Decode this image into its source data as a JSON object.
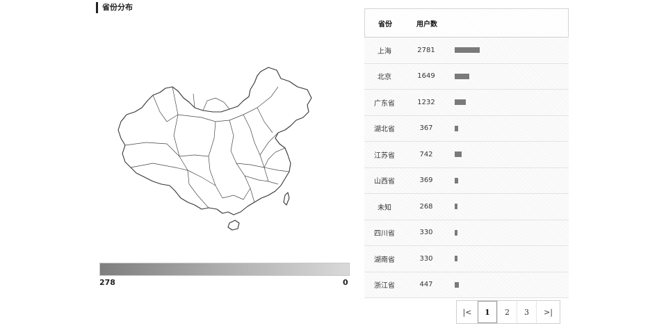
{
  "section": {
    "title": "省份分布"
  },
  "legend": {
    "min_label": "278",
    "max_label": "0"
  },
  "table": {
    "headers": {
      "province": "省份",
      "count": "用户数"
    },
    "rows": [
      {
        "province": "上海",
        "count": "2781",
        "value": 2781
      },
      {
        "province": "北京",
        "count": "1649",
        "value": 1649
      },
      {
        "province": "广东省",
        "count": "1232",
        "value": 1232
      },
      {
        "province": "湖北省",
        "count": "367",
        "value": 367
      },
      {
        "province": "江苏省",
        "count": "742",
        "value": 742
      },
      {
        "province": "山西省",
        "count": "369",
        "value": 369
      },
      {
        "province": "未知",
        "count": "268",
        "value": 268
      },
      {
        "province": "四川省",
        "count": "330",
        "value": 330
      },
      {
        "province": "湖南省",
        "count": "330",
        "value": 330
      },
      {
        "province": "浙江省",
        "count": "447",
        "value": 447
      }
    ],
    "max_value": 2781
  },
  "pagination": {
    "first_icon": "|<",
    "pages": [
      "1",
      "2",
      "3"
    ],
    "current": "1",
    "last_icon": ">|"
  },
  "colors": {
    "bar": "#7a7a7a",
    "legend_dark": "#7e7e7e",
    "legend_light": "#d9d9d9"
  }
}
